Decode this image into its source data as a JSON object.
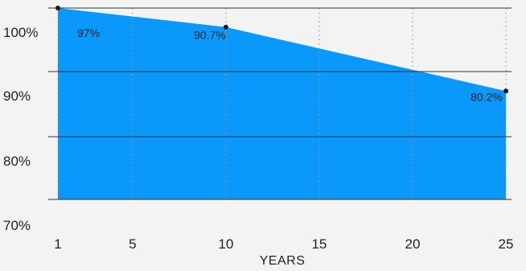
{
  "chart_data": {
    "type": "area",
    "title": "",
    "xlabel": "YEARS",
    "ylabel": "",
    "x_ticks": [
      1,
      5,
      10,
      15,
      20,
      25
    ],
    "y_ticks": [
      70,
      80,
      90,
      100
    ],
    "y_tick_labels": [
      "70%",
      "80%",
      "90%",
      "100%"
    ],
    "xlim": [
      1,
      25
    ],
    "ylim": [
      70,
      100
    ],
    "grid": {
      "horizontal": true,
      "vertical": "dotted"
    },
    "legend": "none",
    "series": [
      {
        "x": [
          1,
          10,
          25
        ],
        "y": [
          100,
          97,
          87
        ]
      }
    ],
    "data_labels": [
      "97%",
      "90.7%",
      "80.2%"
    ],
    "colors": {
      "fill": "#0a98fa",
      "grid": "#333333",
      "vertical_grid": "#9a9a9a",
      "marker": "#1a1a1a",
      "background": "#f3f3f3"
    }
  }
}
